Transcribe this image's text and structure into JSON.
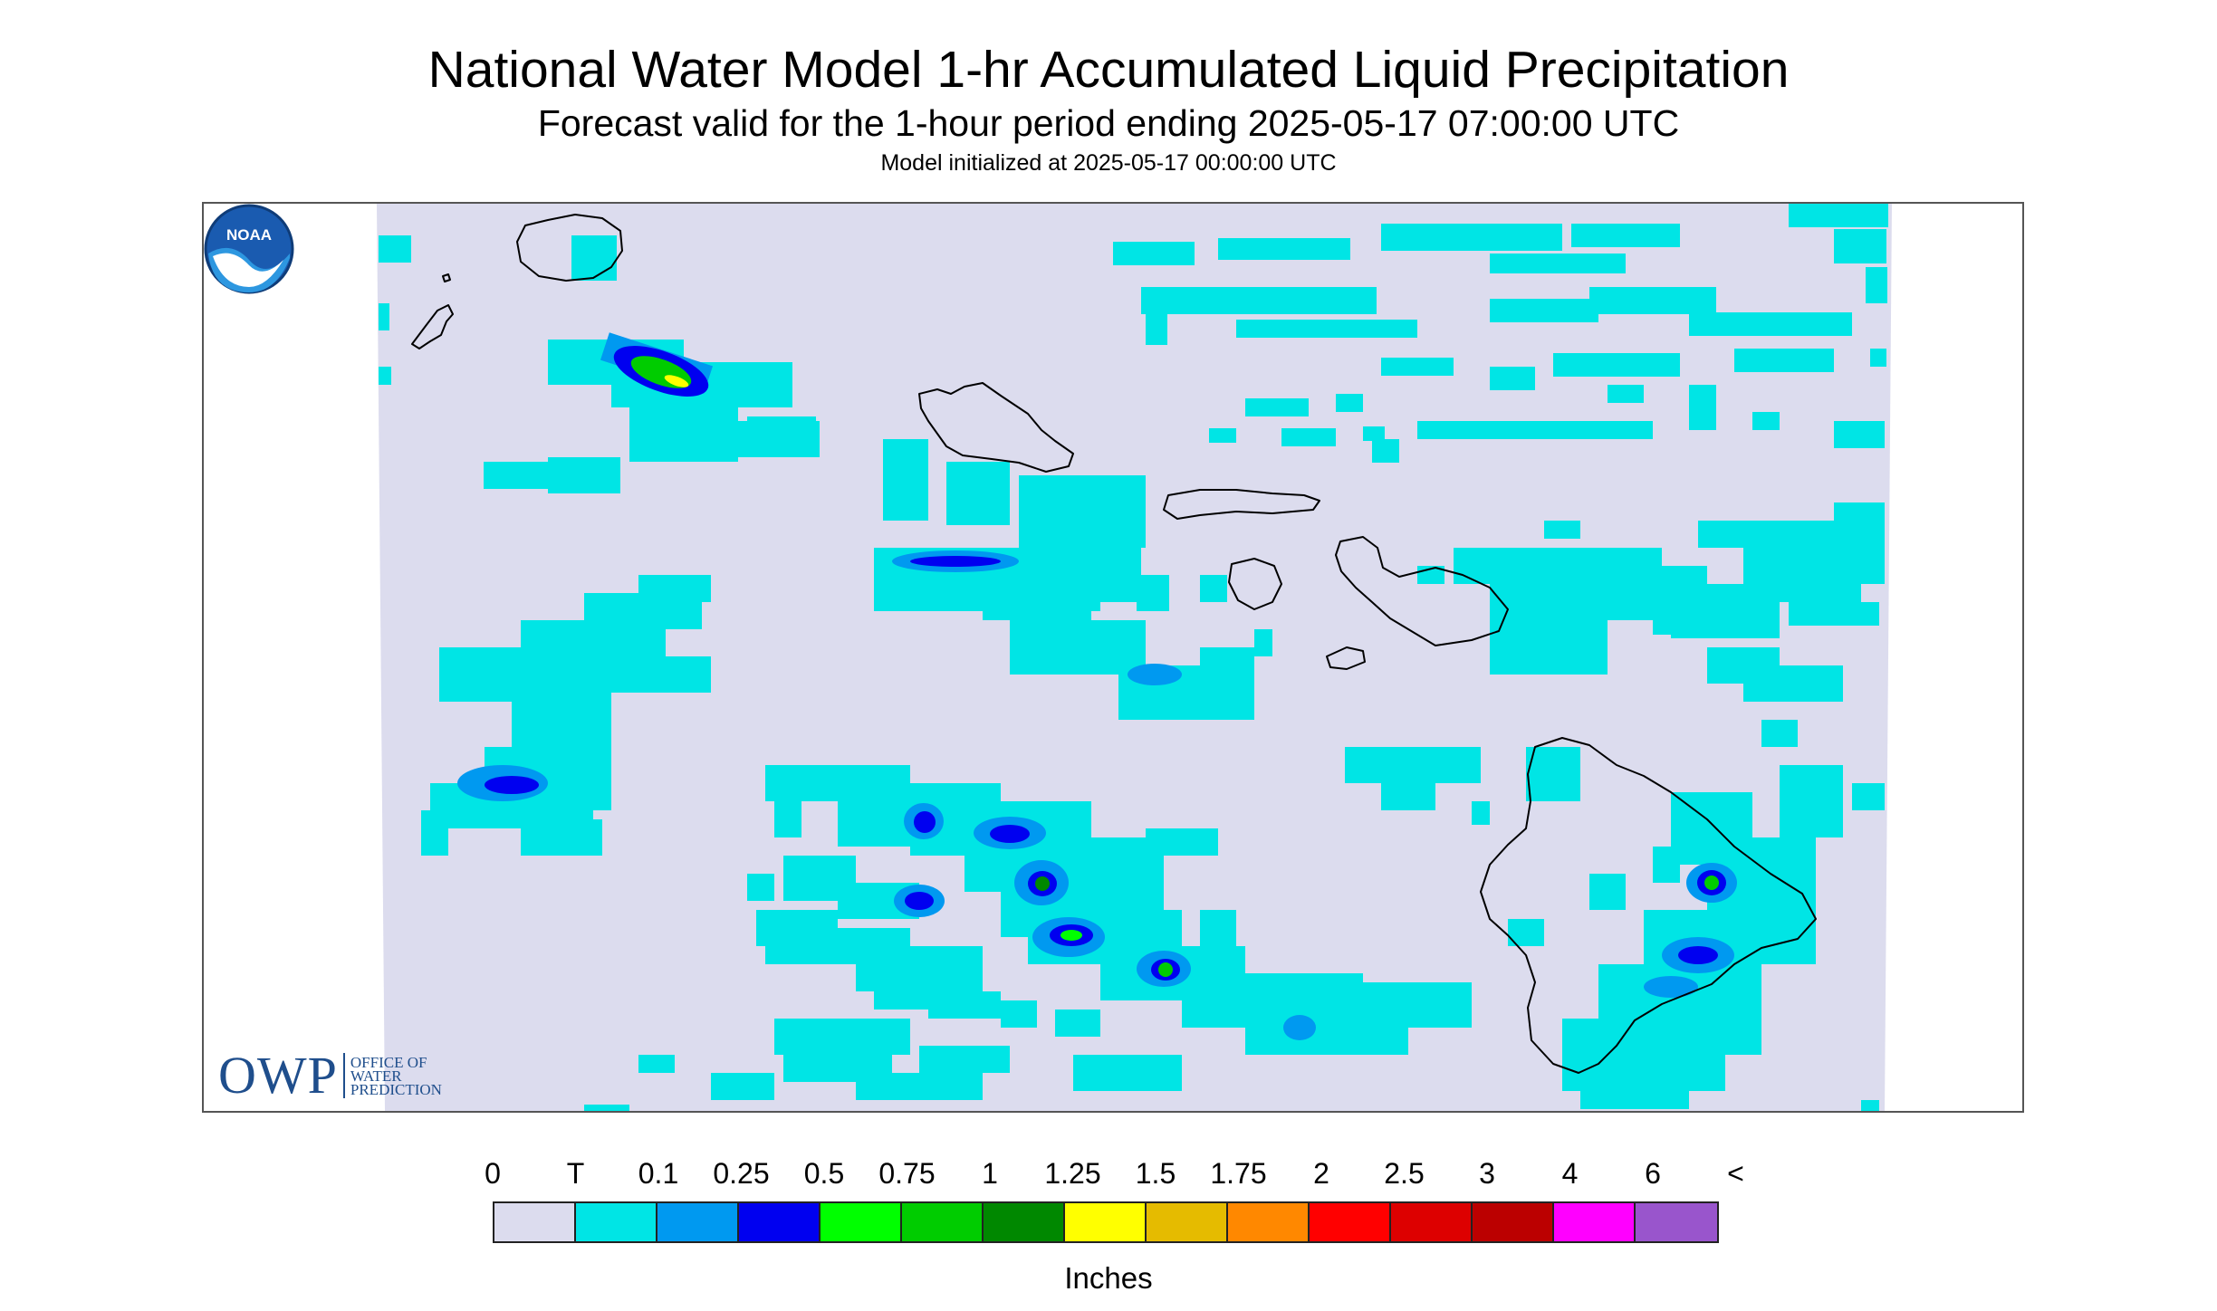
{
  "title": "National Water Model 1-hr Accumulated Liquid Precipitation",
  "subtitle": "Forecast valid for the 1-hour period ending 2025-05-17 07:00:00 UTC",
  "init_text": "Model initialized at 2025-05-17 00:00:00 UTC",
  "map": {
    "background_color": "#dcdcee",
    "coastline_color": "#000000",
    "features": [
      "Niihau",
      "Kauai",
      "Oahu",
      "Molokai",
      "Lanai",
      "Maui",
      "Kahoolawe",
      "Hawaii"
    ]
  },
  "logos": {
    "owp_letters": "OWP",
    "owp_text": [
      "OFFICE OF",
      "WATER",
      "PREDICTION"
    ],
    "noaa_text": "NOAA"
  },
  "legend": {
    "tick_labels": [
      "0",
      "T",
      "0.1",
      "0.25",
      "0.5",
      "0.75",
      "1",
      "1.25",
      "1.5",
      "1.75",
      "2",
      "2.5",
      "3",
      "4",
      "6",
      "<"
    ],
    "colors": [
      "#dcdcee",
      "#00e5e5",
      "#0099f0",
      "#0000f0",
      "#00ff00",
      "#00cc00",
      "#008800",
      "#ffff00",
      "#e5bb00",
      "#ff8800",
      "#ff0000",
      "#dd0000",
      "#bb0000",
      "#ff00ff",
      "#9955cc"
    ],
    "unit": "Inches"
  }
}
